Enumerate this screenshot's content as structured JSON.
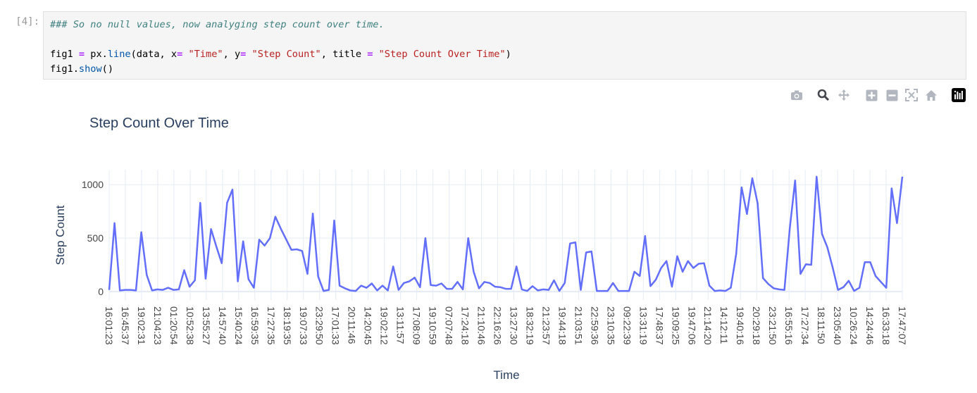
{
  "notebook": {
    "prompt": "[4]:",
    "code_lines": [
      [
        {
          "t": "### So no null values, now analyging step count over time.",
          "c": "c-comment"
        }
      ],
      [],
      [
        {
          "t": "fig1 "
        },
        {
          "t": "=",
          "c": "c-op"
        },
        {
          "t": " px."
        },
        {
          "t": "line",
          "c": "c-call"
        },
        {
          "t": "(data, x"
        },
        {
          "t": "=",
          "c": "c-op"
        },
        {
          "t": " "
        },
        {
          "t": "\"Time\"",
          "c": "c-str"
        },
        {
          "t": ", y"
        },
        {
          "t": "=",
          "c": "c-op"
        },
        {
          "t": " "
        },
        {
          "t": "\"Step Count\"",
          "c": "c-str"
        },
        {
          "t": ", title "
        },
        {
          "t": "=",
          "c": "c-op"
        },
        {
          "t": " "
        },
        {
          "t": "\"Step Count Over Time\"",
          "c": "c-str"
        },
        {
          "t": ")"
        }
      ],
      [
        {
          "t": "fig1."
        },
        {
          "t": "show",
          "c": "c-call"
        },
        {
          "t": "()"
        }
      ]
    ]
  },
  "toolbar": {
    "buttons": [
      {
        "name": "camera-icon",
        "title": "Download plot as a png"
      },
      {
        "name": "zoom-icon",
        "title": "Zoom"
      },
      {
        "name": "pan-icon",
        "title": "Pan"
      },
      {
        "name": "zoom-in-icon",
        "title": "Zoom in"
      },
      {
        "name": "zoom-out-icon",
        "title": "Zoom out"
      },
      {
        "name": "autoscale-icon",
        "title": "Autoscale"
      },
      {
        "name": "home-icon",
        "title": "Reset axes"
      },
      {
        "name": "plotly-logo-icon",
        "title": "Produced with Plotly"
      }
    ]
  },
  "colors": {
    "line": "#636efa",
    "grid": "#e5ecf6",
    "text": "#2a3f5f",
    "tick": "#444444"
  },
  "chart_data": {
    "type": "line",
    "title": "Step Count Over Time",
    "xlabel": "Time",
    "ylabel": "Step Count",
    "ylim": [
      -60,
      1140
    ],
    "yticks": [
      0,
      500,
      1000
    ],
    "grid": true,
    "x_tick_labels": [
      "16:01:23",
      "16:45:37",
      "19:02:31",
      "21:04:23",
      "01:20:54",
      "10:52:38",
      "13:55:27",
      "14:57:40",
      "15:40:24",
      "16:59:35",
      "17:27:35",
      "18:19:35",
      "19:07:33",
      "23:29:50",
      "17:01:33",
      "20:11:46",
      "14:20:45",
      "19:02:12",
      "13:11:57",
      "17:08:09",
      "19:10:59",
      "07:07:48",
      "17:24:18",
      "21:10:46",
      "22:16:26",
      "13:27:30",
      "18:32:19",
      "21:23:57",
      "19:44:18",
      "21:03:51",
      "22:59:36",
      "23:10:35",
      "09:22:39",
      "13:31:19",
      "17:48:37",
      "19:09:25",
      "19:47:06",
      "21:14:20",
      "14:12:11",
      "19:40:16",
      "20:29:18",
      "23:21:50",
      "16:55:16",
      "17:27:34",
      "18:11:50",
      "23:05:40",
      "10:26:24",
      "14:24:46",
      "16:33:18",
      "17:47:07"
    ],
    "y": [
      15,
      640,
      10,
      15,
      15,
      10,
      555,
      155,
      10,
      20,
      15,
      35,
      15,
      20,
      200,
      45,
      105,
      830,
      120,
      585,
      420,
      265,
      830,
      955,
      95,
      470,
      115,
      35,
      485,
      430,
      500,
      700,
      590,
      490,
      390,
      395,
      380,
      165,
      730,
      140,
      5,
      15,
      665,
      55,
      30,
      10,
      5,
      55,
      35,
      75,
      10,
      55,
      10,
      235,
      15,
      80,
      95,
      130,
      40,
      500,
      60,
      55,
      75,
      25,
      25,
      90,
      20,
      500,
      185,
      30,
      90,
      80,
      45,
      40,
      25,
      25,
      235,
      20,
      5,
      50,
      10,
      20,
      15,
      105,
      5,
      80,
      450,
      460,
      15,
      365,
      375,
      5,
      5,
      5,
      80,
      5,
      5,
      5,
      185,
      145,
      520,
      50,
      110,
      220,
      285,
      45,
      330,
      185,
      285,
      220,
      260,
      265,
      55,
      5,
      10,
      5,
      35,
      350,
      975,
      725,
      1060,
      825,
      125,
      70,
      30,
      20,
      15,
      590,
      1040,
      165,
      255,
      250,
      1075,
      540,
      415,
      225,
      15,
      40,
      100,
      5,
      35,
      275,
      275,
      145,
      90,
      35,
      965,
      640,
      1075
    ]
  }
}
